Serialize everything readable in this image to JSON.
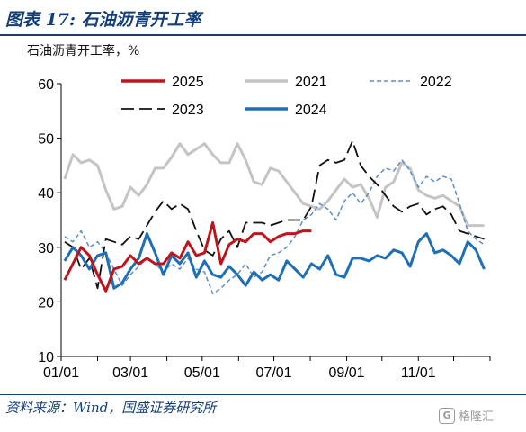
{
  "header": {
    "title": "图表 17:  石油沥青开工率",
    "subtitle": "石油沥青开工率，%"
  },
  "footer": {
    "source": "资料来源：Wind，国盛证券研究所",
    "watermark_logo": "G",
    "watermark_text": "格隆汇"
  },
  "chart_data": {
    "type": "line",
    "title": "石油沥青开工率",
    "ylabel": "石油沥青开工率，%",
    "xlabel": "",
    "ylim": [
      10,
      60
    ],
    "yticks": [
      10,
      20,
      30,
      40,
      50,
      60
    ],
    "xlim": [
      0,
      365
    ],
    "xticks": [
      {
        "label": "01/01",
        "day": 0
      },
      {
        "label": "03/01",
        "day": 59
      },
      {
        "label": "05/01",
        "day": 120
      },
      {
        "label": "07/01",
        "day": 181
      },
      {
        "label": "09/01",
        "day": 243
      },
      {
        "label": "11/01",
        "day": 304
      }
    ],
    "grid": false,
    "legend_position": "top",
    "series": [
      {
        "name": "2025",
        "color": "#c0141c",
        "dash": "solid",
        "width": 3,
        "x": [
          3,
          10,
          17,
          24,
          31,
          38,
          45,
          52,
          59,
          66,
          73,
          80,
          87,
          94,
          101,
          108,
          115,
          122,
          129,
          136,
          143,
          150,
          157,
          164,
          171,
          178,
          185,
          192,
          199,
          206,
          213
        ],
        "y": [
          24,
          27,
          30,
          28.5,
          25,
          22,
          26,
          26.5,
          28.5,
          27,
          28,
          27,
          27,
          29,
          28,
          31,
          28.5,
          29,
          34.5,
          27,
          30.5,
          31.5,
          31,
          32.5,
          32.5,
          31,
          32,
          32.5,
          32.5,
          33,
          33
        ]
      },
      {
        "name": "2021",
        "color": "#c4c4c4",
        "dash": "solid",
        "width": 3,
        "x": [
          3,
          10,
          17,
          24,
          31,
          38,
          45,
          52,
          59,
          66,
          73,
          80,
          87,
          94,
          101,
          108,
          115,
          122,
          129,
          136,
          143,
          150,
          157,
          164,
          171,
          178,
          185,
          192,
          199,
          206,
          213,
          220,
          227,
          234,
          241,
          248,
          255,
          262,
          269,
          276,
          283,
          290,
          297,
          304,
          311,
          318,
          325,
          332,
          339,
          346,
          353,
          360
        ],
        "y": [
          42.5,
          47,
          45.5,
          46,
          45,
          40.5,
          37,
          37.5,
          41,
          39.5,
          41.5,
          44.5,
          44.5,
          46.5,
          49,
          47,
          48,
          49,
          47,
          45.5,
          45.5,
          49,
          46,
          42,
          41.5,
          44.5,
          44,
          42,
          40,
          38,
          37.5,
          37,
          38.5,
          40.5,
          42.5,
          41,
          41.5,
          39,
          35.5,
          41,
          42,
          45.5,
          44.5,
          40.5,
          39.5,
          39,
          39.5,
          38.5,
          37.5,
          34,
          34,
          34
        ]
      },
      {
        "name": "2022",
        "color": "#5b8ec9",
        "dash": "dashed",
        "width": 1.5,
        "x": [
          3,
          10,
          17,
          24,
          31,
          38,
          45,
          52,
          59,
          66,
          73,
          80,
          87,
          94,
          101,
          108,
          115,
          122,
          129,
          136,
          143,
          150,
          157,
          164,
          171,
          178,
          185,
          192,
          199,
          206,
          213,
          220,
          227,
          234,
          241,
          248,
          255,
          262,
          269,
          276,
          283,
          290,
          297,
          304,
          311,
          318,
          325,
          332,
          339,
          346,
          353,
          360
        ],
        "y": [
          32,
          31,
          33,
          30,
          31,
          29,
          26,
          23,
          25,
          26.5,
          28,
          27,
          25.5,
          27,
          26,
          28,
          26,
          25.5,
          21.5,
          22.5,
          24,
          25,
          27,
          24.5,
          25.5,
          28.5,
          29,
          30,
          32,
          35,
          36,
          38,
          37,
          35,
          38.5,
          40,
          38,
          40,
          43,
          44.5,
          44,
          46,
          44,
          41,
          43,
          42,
          43,
          42.5,
          38,
          33,
          31.5,
          30.5
        ]
      },
      {
        "name": "2023",
        "color": "#111111",
        "dash": "longdash",
        "width": 1.8,
        "x": [
          3,
          10,
          17,
          24,
          31,
          38,
          45,
          52,
          59,
          66,
          73,
          80,
          87,
          94,
          101,
          108,
          115,
          122,
          129,
          136,
          143,
          150,
          157,
          164,
          171,
          178,
          185,
          192,
          199,
          206,
          213,
          220,
          227,
          234,
          241,
          248,
          255,
          262,
          269,
          276,
          283,
          290,
          297,
          304,
          311,
          318,
          325,
          332,
          339,
          346,
          353,
          360
        ],
        "y": [
          31,
          30,
          26,
          28,
          22.5,
          31.5,
          31,
          30.5,
          32,
          31.5,
          34,
          36.5,
          38.5,
          37,
          38,
          37,
          33,
          29.5,
          28.5,
          31.5,
          33,
          30,
          34.5,
          34.5,
          34.5,
          34,
          34.5,
          35,
          35,
          35,
          37.5,
          45,
          46,
          45.5,
          46,
          49.5,
          45,
          43,
          41.5,
          39.5,
          37.5,
          36.5,
          37.5,
          38,
          36,
          37,
          37.5,
          36,
          33,
          32.5,
          32,
          31.5
        ]
      },
      {
        "name": "2024",
        "color": "#1f6fb5",
        "dash": "solid",
        "width": 3,
        "x": [
          3,
          10,
          17,
          24,
          31,
          38,
          45,
          52,
          59,
          66,
          73,
          80,
          87,
          94,
          101,
          108,
          115,
          122,
          129,
          136,
          143,
          150,
          157,
          164,
          171,
          178,
          185,
          192,
          199,
          206,
          213,
          220,
          227,
          234,
          241,
          248,
          255,
          262,
          269,
          276,
          283,
          290,
          297,
          304,
          311,
          318,
          325,
          332,
          339,
          346,
          353,
          360
        ],
        "y": [
          27.5,
          30,
          28.5,
          26,
          28.5,
          29,
          22.5,
          23.5,
          26,
          28,
          32.5,
          29,
          25,
          28.5,
          27,
          29,
          24.5,
          27.5,
          25,
          24.5,
          26.5,
          25,
          23,
          25.5,
          24,
          25,
          24,
          27.5,
          26,
          24.5,
          27,
          26,
          28.5,
          25,
          24.5,
          28,
          28,
          27.5,
          28.5,
          28,
          29.5,
          29,
          26.5,
          31,
          32.5,
          29,
          29.5,
          28.5,
          27,
          31,
          29.5,
          26
        ]
      }
    ]
  }
}
